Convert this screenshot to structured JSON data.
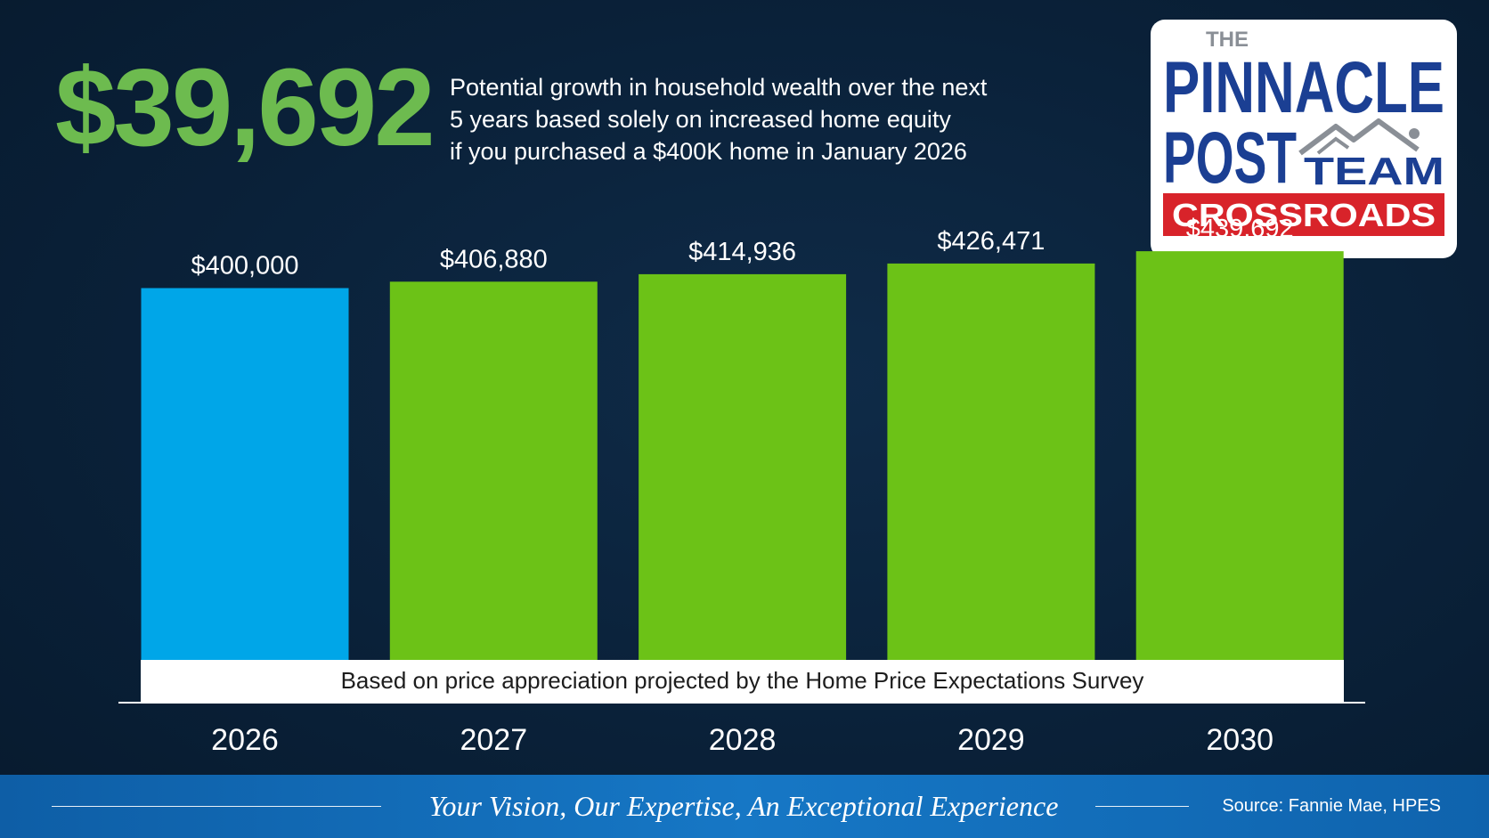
{
  "headline": {
    "value": "$39,692",
    "description": [
      "Potential growth in household wealth over the next",
      "5 years based solely on increased home equity",
      "if you purchased a $400K home in January 2026"
    ]
  },
  "logo": {
    "line1": "THE",
    "line2": "PINNACLE",
    "line3": "POST",
    "line4": "TEAM",
    "banner": "CROSSROADS",
    "colors": {
      "navy": "#1b3f93",
      "red": "#d8232a",
      "gray": "#8a8f96"
    }
  },
  "chart_data": {
    "type": "bar",
    "categories": [
      "2026",
      "2027",
      "2028",
      "2029",
      "2030"
    ],
    "values": [
      400000,
      406880,
      414936,
      426471,
      439692
    ],
    "data_labels": [
      "$400,000",
      "$406,880",
      "$414,936",
      "$426,471",
      "$439,692"
    ],
    "colors": [
      "#00a6e8",
      "#6cc217",
      "#6cc217",
      "#6cc217",
      "#6cc217"
    ],
    "title": "",
    "xlabel": "",
    "ylabel": "",
    "ylim": [
      0,
      480000
    ],
    "grid": false
  },
  "note": "Based on price appreciation projected by the Home Price Expectations Survey",
  "footer": {
    "tagline": "Your Vision, Our Expertise, An Exceptional Experience",
    "source": "Source: Fannie Mae, HPES"
  }
}
